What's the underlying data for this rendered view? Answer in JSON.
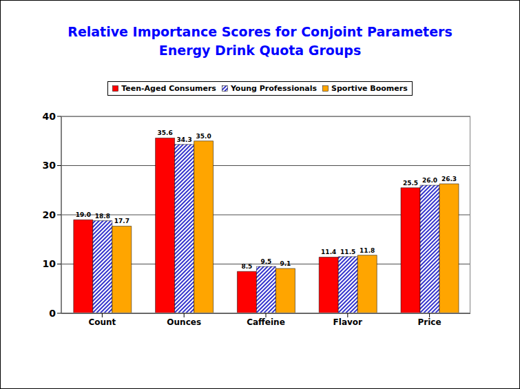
{
  "chart_data": {
    "type": "bar",
    "title": "Relative Importance Scores for Conjoint Parameters",
    "subtitle": "Energy Drink Quota Groups",
    "categories": [
      "Count",
      "Ounces",
      "Caffeine",
      "Flavor",
      "Price"
    ],
    "series": [
      {
        "name": "Teen-Aged Consumers",
        "color": "#ff0000",
        "values": [
          19.0,
          35.6,
          8.5,
          11.4,
          25.5
        ],
        "value_labels": [
          "19.0",
          "35.6",
          "8.5",
          "11.4",
          "25.5"
        ]
      },
      {
        "name": "Young Professionals",
        "color": "#3333cc",
        "values": [
          18.8,
          34.3,
          9.5,
          11.5,
          26.0
        ],
        "value_labels": [
          "18.8",
          "34.3",
          "9.5",
          "11.5",
          "26.0"
        ]
      },
      {
        "name": "Sportive Boomers",
        "color": "#ffa500",
        "values": [
          17.7,
          35.0,
          9.1,
          11.8,
          26.3
        ],
        "value_labels": [
          "17.7",
          "35.0",
          "9.1",
          "11.8",
          "26.3"
        ]
      }
    ],
    "ylim": [
      0,
      40
    ],
    "yticks": [
      0,
      10,
      20,
      30,
      40
    ],
    "grid": true,
    "legend": "top",
    "data_labels": true
  }
}
